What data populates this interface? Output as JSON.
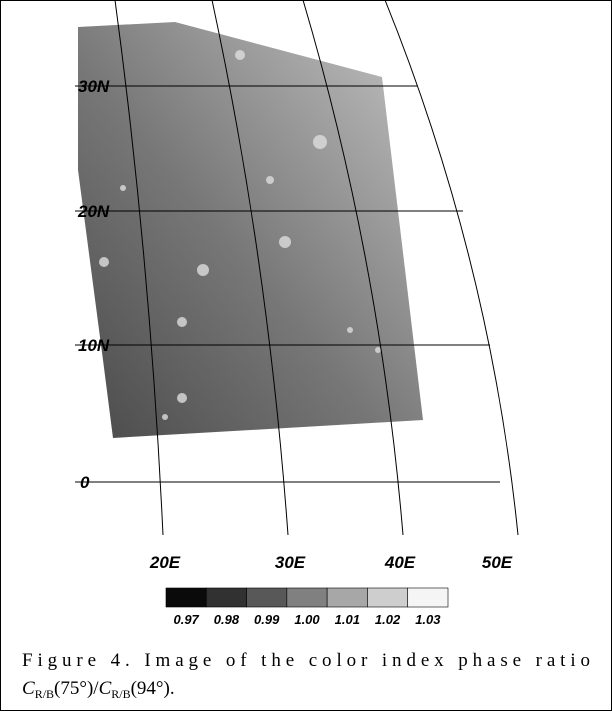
{
  "graticule": {
    "latitudes": [
      "30N",
      "20N",
      "10N",
      "0"
    ],
    "longitudes": [
      "20E",
      "30E",
      "40E",
      "50E"
    ]
  },
  "colorbar": {
    "ticks": [
      {
        "value": 0.97,
        "label": "0.97"
      },
      {
        "value": 0.98,
        "label": "0.98"
      },
      {
        "value": 0.99,
        "label": "0.99"
      },
      {
        "value": 1,
        "label": "1.00"
      },
      {
        "value": 1.01,
        "label": "1.01"
      },
      {
        "value": 1.02,
        "label": "1.02"
      },
      {
        "value": 1.03,
        "label": "1.03"
      }
    ]
  },
  "caption": {
    "line1": "Figure 4. Image of the color index phase ratio",
    "symbol1": "C",
    "sub1": "R/B",
    "arg1": "(75°)/",
    "symbol2": "C",
    "sub2": "R/B",
    "arg2": "(94°)."
  }
}
